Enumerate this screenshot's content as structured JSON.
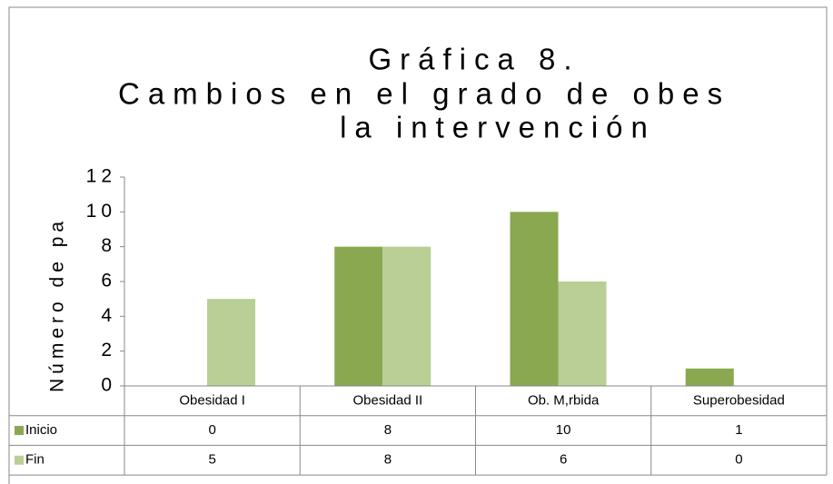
{
  "chart_data": {
    "type": "bar",
    "title": [
      "Gráfica 8.",
      "Cambios en el grado de obes",
      "la intervención"
    ],
    "y_label": "Número de pa",
    "categories": [
      "Obesidad I",
      "Obesidad II",
      "Ob. M,rbida",
      "Superobesidad"
    ],
    "series": [
      {
        "name": "Inicio",
        "color": "#8aa84f",
        "values": [
          0,
          8,
          10,
          1
        ]
      },
      {
        "name": "Fin",
        "color": "#b9cf96",
        "values": [
          5,
          8,
          6,
          0
        ]
      }
    ],
    "ylim": [
      0,
      12
    ],
    "yticks": [
      0,
      2,
      4,
      6,
      8,
      10,
      12
    ],
    "grid": false
  }
}
